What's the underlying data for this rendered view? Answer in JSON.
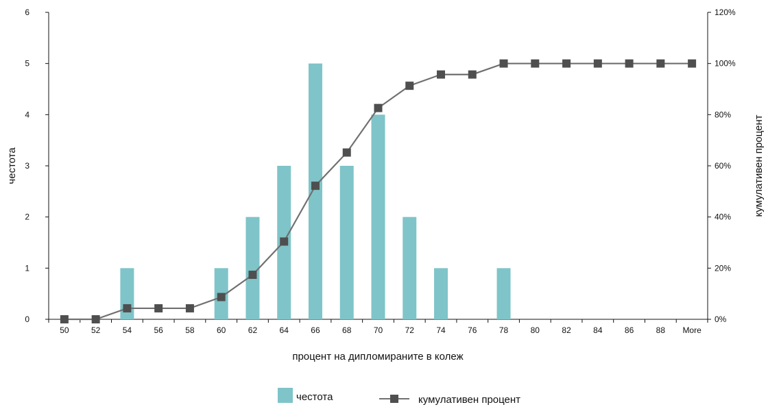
{
  "chart_data": {
    "type": "bar",
    "categories": [
      "50",
      "52",
      "54",
      "56",
      "58",
      "60",
      "62",
      "64",
      "66",
      "68",
      "70",
      "72",
      "74",
      "76",
      "78",
      "80",
      "82",
      "84",
      "86",
      "88",
      "More"
    ],
    "series": [
      {
        "name": "честота",
        "type": "bar",
        "axis": "left",
        "values": [
          0,
          0,
          1,
          0,
          0,
          1,
          2,
          3,
          5,
          3,
          4,
          2,
          1,
          0,
          1,
          0,
          0,
          0,
          0,
          0,
          0
        ]
      },
      {
        "name": "кумулативен процент",
        "type": "line",
        "axis": "right",
        "values": [
          0,
          0,
          4.3,
          4.3,
          4.3,
          8.7,
          17.4,
          30.4,
          52.2,
          65.2,
          82.6,
          91.3,
          95.7,
          95.7,
          100,
          100,
          100,
          100,
          100,
          100,
          100
        ]
      }
    ],
    "xlabel": "процент на дипломираните в колеж",
    "ylabel": "честота",
    "y2label": "кумулативен процент",
    "ylim": [
      0,
      6
    ],
    "y2lim": [
      0,
      120
    ],
    "yticks": [
      "0",
      "1",
      "2",
      "3",
      "4",
      "5",
      "6"
    ],
    "y2ticks": [
      "0%",
      "20%",
      "40%",
      "60%",
      "80%",
      "100%",
      "120%"
    ],
    "grid": false,
    "legend_position": "bottom",
    "colors": {
      "bar": "#7fc4c8",
      "line": "#707070",
      "marker": "#4f4f4f",
      "axis": "#111111"
    }
  }
}
